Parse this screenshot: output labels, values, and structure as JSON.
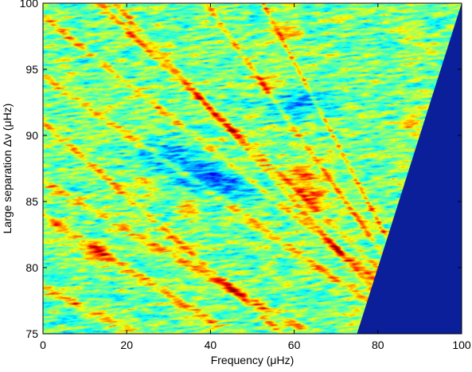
{
  "chart_data": {
    "type": "heatmap",
    "title": "",
    "xlabel": "Frequency (μHz)",
    "ylabel": "Large separation Δν (μHz)",
    "xlim": [
      0,
      100
    ],
    "ylim": [
      75,
      100
    ],
    "xticks": [
      "0",
      "20",
      "40",
      "60",
      "80",
      "100"
    ],
    "yticks": [
      "75",
      "80",
      "85",
      "90",
      "95",
      "100"
    ],
    "colormap": "jet",
    "masked_region": {
      "description_color": "#0a1f99",
      "boundary": [
        [
          75,
          75
        ],
        [
          100,
          100
        ]
      ]
    },
    "ridges": [
      {
        "x0": 0,
        "y0": 99.0,
        "slope": -0.25
      },
      {
        "x0": 0,
        "y0": 94.5,
        "slope": -0.22
      },
      {
        "x0": 0,
        "y0": 91.0,
        "slope": -0.28
      },
      {
        "x0": 0,
        "y0": 86.5,
        "slope": -0.18
      },
      {
        "x0": 10,
        "y0": 82.0,
        "slope": -0.2
      },
      {
        "x0": 20,
        "y0": 98.0,
        "slope": -0.3
      },
      {
        "x0": 40,
        "y0": 99.5,
        "slope": -0.45
      },
      {
        "x0": 55,
        "y0": 98.5,
        "slope": -0.6
      },
      {
        "x0": 30,
        "y0": 95.5,
        "slope": -0.35
      },
      {
        "x0": 0,
        "y0": 78.5,
        "slope": -0.15
      }
    ],
    "hotspots": [
      {
        "x": 62,
        "y": 87.0,
        "value": 1.0
      },
      {
        "x": 65,
        "y": 85.5,
        "value": 0.95
      },
      {
        "x": 54,
        "y": 94.0,
        "value": 0.85
      },
      {
        "x": 13,
        "y": 81.0,
        "value": 0.9
      },
      {
        "x": 58,
        "y": 98.0,
        "value": 0.8
      },
      {
        "x": 35,
        "y": 84.5,
        "value": 0.8
      },
      {
        "x": 25,
        "y": 86.5,
        "value": 0.75
      },
      {
        "x": 88,
        "y": 91.0,
        "value": 0.75
      }
    ],
    "lowspots": [
      {
        "x": 28,
        "y": 88.5,
        "value": 0.1
      },
      {
        "x": 45,
        "y": 86.0,
        "value": 0.12
      },
      {
        "x": 38,
        "y": 87.0,
        "value": 0.08
      },
      {
        "x": 60,
        "y": 92.5,
        "value": 0.15
      }
    ]
  }
}
